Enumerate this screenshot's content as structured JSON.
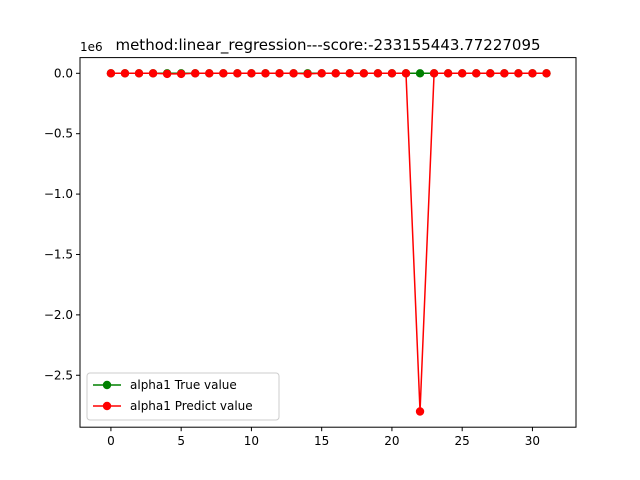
{
  "chart_data": {
    "type": "line",
    "title": "method:linear_regression---score:-233155443.77227095",
    "offset_label": "1e6",
    "x": [
      0,
      1,
      2,
      3,
      4,
      5,
      6,
      7,
      8,
      9,
      10,
      11,
      12,
      13,
      14,
      15,
      16,
      17,
      18,
      19,
      20,
      21,
      22,
      23,
      24,
      25,
      26,
      27,
      28,
      29,
      30,
      31
    ],
    "xlim": [
      -2.2,
      33.1
    ],
    "ylim": [
      -2.93,
      0.13
    ],
    "x_ticks": [
      0,
      5,
      10,
      15,
      20,
      25,
      30
    ],
    "x_tick_labels": [
      "0",
      "5",
      "10",
      "15",
      "20",
      "25",
      "30"
    ],
    "y_ticks": [
      0.0,
      -0.5,
      -1.0,
      -1.5,
      -2.0,
      -2.5
    ],
    "y_tick_labels": [
      "0.0",
      "−0.5",
      "−1.0",
      "−1.5",
      "−2.0",
      "−2.5"
    ],
    "grid": false,
    "legend_position": "lower-left",
    "series": [
      {
        "name": "alpha1 True value",
        "color": "#008000",
        "marker": "circle",
        "values": [
          0,
          0,
          0,
          0,
          0,
          0,
          0,
          0,
          0,
          0,
          0,
          0,
          0,
          0,
          0,
          0,
          0,
          0,
          0,
          0,
          0,
          0,
          0,
          0,
          0,
          0,
          0,
          0,
          0,
          0,
          0,
          0
        ]
      },
      {
        "name": "alpha1 Predict value",
        "color": "#ff0000",
        "marker": "circle",
        "values": [
          0,
          0,
          0,
          0,
          -0.005,
          -0.005,
          0,
          0,
          0,
          0,
          0,
          0,
          0,
          0,
          -0.005,
          0,
          0,
          0,
          0,
          0,
          0,
          0,
          -2.8,
          0,
          0,
          0,
          0,
          0,
          0,
          0,
          0,
          0
        ]
      }
    ]
  }
}
